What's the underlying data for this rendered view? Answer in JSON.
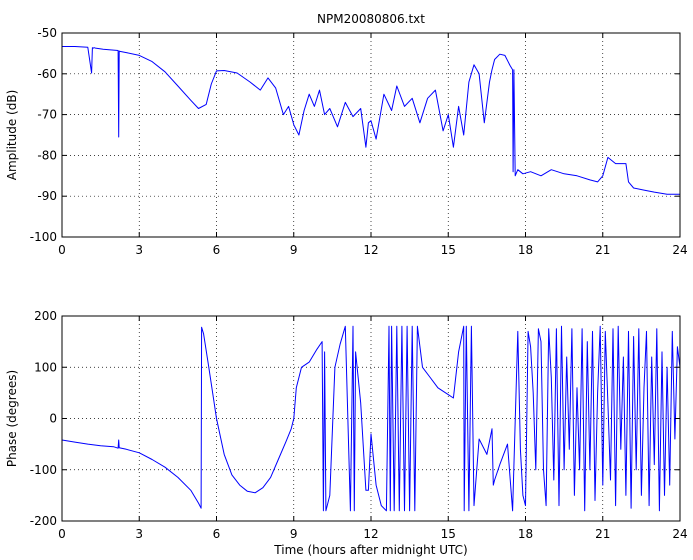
{
  "chart_data": [
    {
      "type": "line",
      "title": "NPM20080806.txt",
      "xlabel": "",
      "ylabel": "Amplitude (dB)",
      "xlim": [
        0,
        24
      ],
      "ylim": [
        -100,
        -50
      ],
      "xticks": [
        0,
        3,
        6,
        9,
        12,
        15,
        18,
        21,
        24
      ],
      "yticks": [
        -100,
        -90,
        -80,
        -70,
        -60,
        -50
      ],
      "grid": true,
      "color": "#0000ff",
      "series": [
        {
          "x": [
            0,
            0.5,
            1.0,
            1.15,
            1.18,
            1.22,
            1.25,
            1.3,
            1.6,
            2.0,
            2.18,
            2.2,
            2.22,
            2.25,
            2.5,
            3.0,
            3.5,
            4.0,
            4.5,
            5.0,
            5.3,
            5.6,
            5.8,
            6.0,
            6.3,
            6.8,
            7.3,
            7.7,
            8.0,
            8.3,
            8.6,
            8.8,
            9.0,
            9.2,
            9.4,
            9.6,
            9.8,
            10.0,
            10.2,
            10.4,
            10.7,
            11.0,
            11.3,
            11.6,
            11.8,
            11.9,
            12.0,
            12.2,
            12.5,
            12.8,
            13.0,
            13.3,
            13.6,
            13.9,
            14.2,
            14.5,
            14.8,
            15.0,
            15.2,
            15.4,
            15.6,
            15.8,
            16.0,
            16.2,
            16.4,
            16.6,
            16.7,
            16.8,
            17.0,
            17.2,
            17.4,
            17.5,
            17.52,
            17.55,
            17.6,
            17.7,
            17.9,
            18.2,
            18.6,
            19.0,
            19.5,
            20.0,
            20.5,
            20.8,
            21.0,
            21.2,
            21.5,
            21.9,
            22.0,
            22.2,
            22.6,
            23.0,
            23.5,
            24.0
          ],
          "y": [
            -53.3,
            -53.3,
            -53.5,
            -59.8,
            -53.6,
            -53.7,
            -53.6,
            -53.7,
            -54.0,
            -54.2,
            -54.3,
            -75.5,
            -54.4,
            -54.5,
            -54.8,
            -55.5,
            -57.0,
            -59.5,
            -63.0,
            -66.5,
            -68.5,
            -67.5,
            -62.5,
            -59.3,
            -59.2,
            -59.8,
            -62.0,
            -64.0,
            -61.0,
            -63.5,
            -70.0,
            -68.0,
            -72.5,
            -75.0,
            -69.0,
            -65.0,
            -68.0,
            -64.0,
            -70.0,
            -68.5,
            -73.0,
            -67.0,
            -70.5,
            -68.5,
            -78.0,
            -72.0,
            -71.5,
            -76.0,
            -65.0,
            -69.0,
            -63.0,
            -68.0,
            -66.0,
            -72.0,
            -66.0,
            -64.0,
            -74.0,
            -70.0,
            -78.0,
            -68.0,
            -75.0,
            -62.0,
            -57.8,
            -60.0,
            -72.0,
            -62.0,
            -59.0,
            -56.5,
            -55.2,
            -55.5,
            -58.0,
            -59.0,
            -84.0,
            -59.0,
            -85.0,
            -83.5,
            -84.5,
            -84.0,
            -85.0,
            -83.5,
            -84.5,
            -85.0,
            -86.0,
            -86.5,
            -85.0,
            -80.5,
            -82.0,
            -82.0,
            -86.5,
            -88.0,
            -88.5,
            -89.0,
            -89.5,
            -89.5
          ]
        }
      ]
    },
    {
      "type": "line",
      "title": "",
      "xlabel": "Time (hours after midnight UTC)",
      "ylabel": "Phase (degrees)",
      "xlim": [
        0,
        24
      ],
      "ylim": [
        -200,
        200
      ],
      "xticks": [
        0,
        3,
        6,
        9,
        12,
        15,
        18,
        21,
        24
      ],
      "yticks": [
        -200,
        -100,
        0,
        100,
        200
      ],
      "grid": true,
      "color": "#0000ff",
      "series": [
        {
          "x": [
            0,
            0.5,
            1.0,
            1.5,
            2.0,
            2.18,
            2.2,
            2.22,
            2.5,
            3.0,
            3.5,
            4.0,
            4.5,
            5.0,
            5.3,
            5.4,
            5.42,
            5.5,
            5.7,
            6.0,
            6.3,
            6.6,
            6.9,
            7.2,
            7.5,
            7.8,
            8.1,
            8.4,
            8.7,
            8.9,
            9.0,
            9.1,
            9.3,
            9.6,
            9.9,
            10.1,
            10.15,
            10.2,
            10.25,
            10.4,
            10.6,
            10.8,
            11.0,
            11.2,
            11.3,
            11.35,
            11.4,
            11.6,
            11.8,
            11.9,
            12.0,
            12.2,
            12.4,
            12.6,
            12.7,
            12.75,
            12.8,
            12.9,
            13.0,
            13.1,
            13.2,
            13.3,
            13.4,
            13.5,
            13.6,
            13.7,
            13.8,
            14.0,
            14.3,
            14.6,
            14.9,
            15.2,
            15.4,
            15.6,
            15.62,
            15.7,
            15.8,
            15.9,
            16.0,
            16.2,
            16.5,
            16.7,
            16.75,
            16.8,
            17.0,
            17.3,
            17.5,
            17.7,
            17.8,
            17.9,
            18.0,
            18.1,
            18.2,
            18.3,
            18.4,
            18.5,
            18.6,
            18.7,
            18.8,
            18.9,
            19.0,
            19.1,
            19.2,
            19.3,
            19.4,
            19.5,
            19.6,
            19.7,
            19.8,
            19.9,
            20.0,
            20.1,
            20.2,
            20.3,
            20.4,
            20.5,
            20.6,
            20.7,
            20.8,
            20.9,
            21.0,
            21.1,
            21.2,
            21.3,
            21.4,
            21.5,
            21.6,
            21.7,
            21.8,
            21.9,
            22.0,
            22.1,
            22.2,
            22.3,
            22.4,
            22.5,
            22.6,
            22.7,
            22.8,
            22.9,
            23.0,
            23.1,
            23.2,
            23.3,
            23.4,
            23.5,
            23.6,
            23.7,
            23.8,
            23.9,
            24.0
          ],
          "y": [
            -42,
            -46,
            -50,
            -53,
            -55,
            -58,
            -42,
            -57,
            -60,
            -67,
            -80,
            -95,
            -115,
            -140,
            -165,
            -175,
            178,
            165,
            100,
            0,
            -70,
            -110,
            -130,
            -142,
            -145,
            -135,
            -115,
            -80,
            -45,
            -20,
            0,
            60,
            100,
            110,
            135,
            150,
            -180,
            130,
            -180,
            -150,
            100,
            145,
            180,
            -180,
            180,
            -180,
            130,
            30,
            -140,
            -140,
            -30,
            -130,
            -170,
            -180,
            180,
            -180,
            180,
            -180,
            180,
            -180,
            180,
            -180,
            180,
            -180,
            180,
            -180,
            180,
            100,
            80,
            60,
            50,
            40,
            130,
            180,
            -180,
            180,
            -180,
            180,
            -170,
            -40,
            -70,
            -20,
            -130,
            -120,
            -90,
            -50,
            -180,
            170,
            -60,
            -150,
            -170,
            170,
            140,
            50,
            -100,
            175,
            150,
            -100,
            -170,
            175,
            80,
            -120,
            175,
            -170,
            180,
            -100,
            120,
            -60,
            175,
            -150,
            60,
            -100,
            175,
            -180,
            150,
            -100,
            170,
            -160,
            50,
            180,
            -130,
            170,
            30,
            -120,
            175,
            -170,
            180,
            -60,
            120,
            -150,
            170,
            -175,
            160,
            -100,
            175,
            -150,
            60,
            170,
            -170,
            120,
            -90,
            175,
            -180,
            130,
            -150,
            100,
            -130,
            170,
            -40,
            140,
            100
          ]
        }
      ]
    }
  ]
}
